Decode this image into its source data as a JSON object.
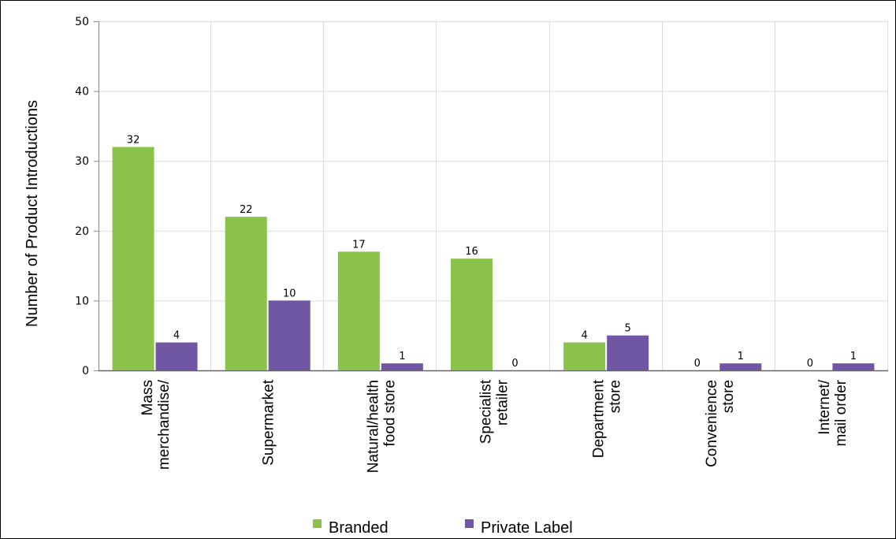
{
  "chart_data": {
    "type": "bar",
    "title": "",
    "xlabel": "",
    "ylabel": "Number of Product Introductions",
    "ylim": [
      0,
      50
    ],
    "yticks": [
      0,
      10,
      20,
      30,
      40,
      50
    ],
    "grid": true,
    "legend_position": "bottom",
    "categories": [
      [
        "Mass",
        "merchandise/"
      ],
      [
        "Supermarket"
      ],
      [
        "Natural/health",
        "food store"
      ],
      [
        "Specialist",
        "retailer"
      ],
      [
        "Department",
        "store"
      ],
      [
        "Convenience",
        "store"
      ],
      [
        "Internet/",
        "mail order"
      ]
    ],
    "series": [
      {
        "name": "Branded",
        "color": "#8bc34a",
        "values": [
          32,
          22,
          17,
          16,
          4,
          0,
          0
        ]
      },
      {
        "name": "Private Label",
        "color": "#7057a3",
        "values": [
          4,
          10,
          1,
          0,
          5,
          1,
          1
        ]
      }
    ]
  }
}
